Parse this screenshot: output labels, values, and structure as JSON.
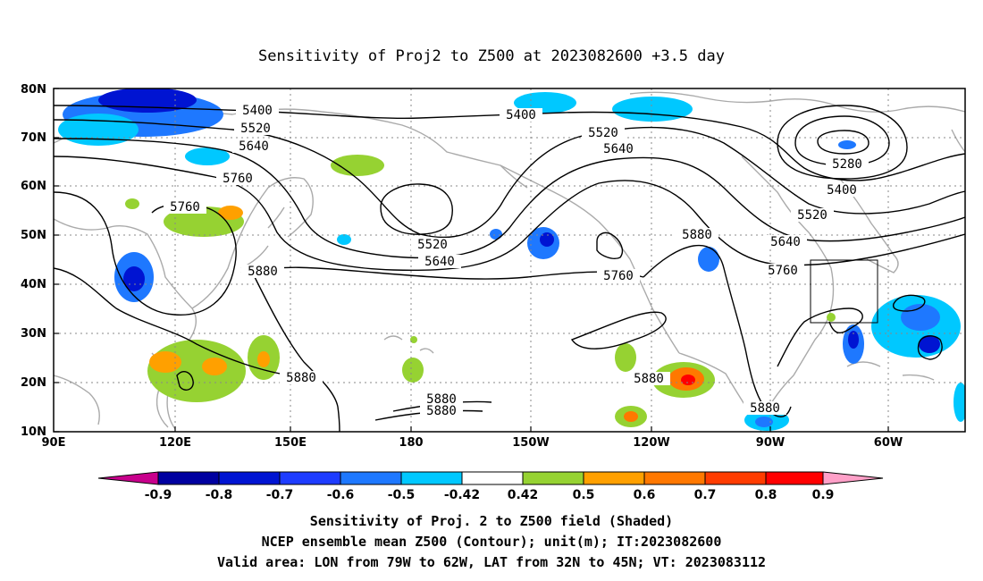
{
  "map": {
    "title": "Sensitivity of Proj2 to Z500 at 2023082600 +3.5 day",
    "lat_ticks": [
      "10N",
      "20N",
      "30N",
      "40N",
      "50N",
      "60N",
      "70N",
      "80N"
    ],
    "lon_ticks": [
      "90E",
      "120E",
      "150E",
      "180",
      "150W",
      "120W",
      "90W",
      "60W"
    ],
    "contour_labels": [
      {
        "id": "c1",
        "text": "5400"
      },
      {
        "id": "c2",
        "text": "5520"
      },
      {
        "id": "c3",
        "text": "5640"
      },
      {
        "id": "c4",
        "text": "5760"
      },
      {
        "id": "c5",
        "text": "5760"
      },
      {
        "id": "c6",
        "text": "5880"
      },
      {
        "id": "c7",
        "text": "5880"
      },
      {
        "id": "c8",
        "text": "5880"
      },
      {
        "id": "c9",
        "text": "5880"
      },
      {
        "id": "c10",
        "text": "5400"
      },
      {
        "id": "c11",
        "text": "5520"
      },
      {
        "id": "c12",
        "text": "5640"
      },
      {
        "id": "c13",
        "text": "5520"
      },
      {
        "id": "c14",
        "text": "5640"
      },
      {
        "id": "c15",
        "text": "5760"
      },
      {
        "id": "c16",
        "text": "5880"
      },
      {
        "id": "c17",
        "text": "5880"
      },
      {
        "id": "c18",
        "text": "5880"
      },
      {
        "id": "c19",
        "text": "5280"
      },
      {
        "id": "c20",
        "text": "5400"
      },
      {
        "id": "c21",
        "text": "5520"
      },
      {
        "id": "c22",
        "text": "5640"
      },
      {
        "id": "c23",
        "text": "5760"
      }
    ],
    "colorbar": {
      "labels": [
        "-0.9",
        "-0.8",
        "-0.7",
        "-0.6",
        "-0.5",
        "-0.42",
        "0.42",
        "0.5",
        "0.6",
        "0.7",
        "0.8",
        "0.9"
      ],
      "colors": [
        "#c8008c",
        "#0000a0",
        "#0014d2",
        "#1e3cff",
        "#1e78ff",
        "#00c8ff",
        "#ffffff",
        "#96d232",
        "#ffa000",
        "#ff7800",
        "#ff3c00",
        "#ff0000",
        "#ffa0c8"
      ]
    },
    "footer": [
      "Sensitivity of Proj. 2 to Z500 field (Shaded)",
      "NCEP ensemble mean Z500 (Contour); unit(m); IT:2023082600",
      "Valid area: LON from 79W to 62W, LAT from 32N to 45N; VT: 2023083112"
    ]
  }
}
